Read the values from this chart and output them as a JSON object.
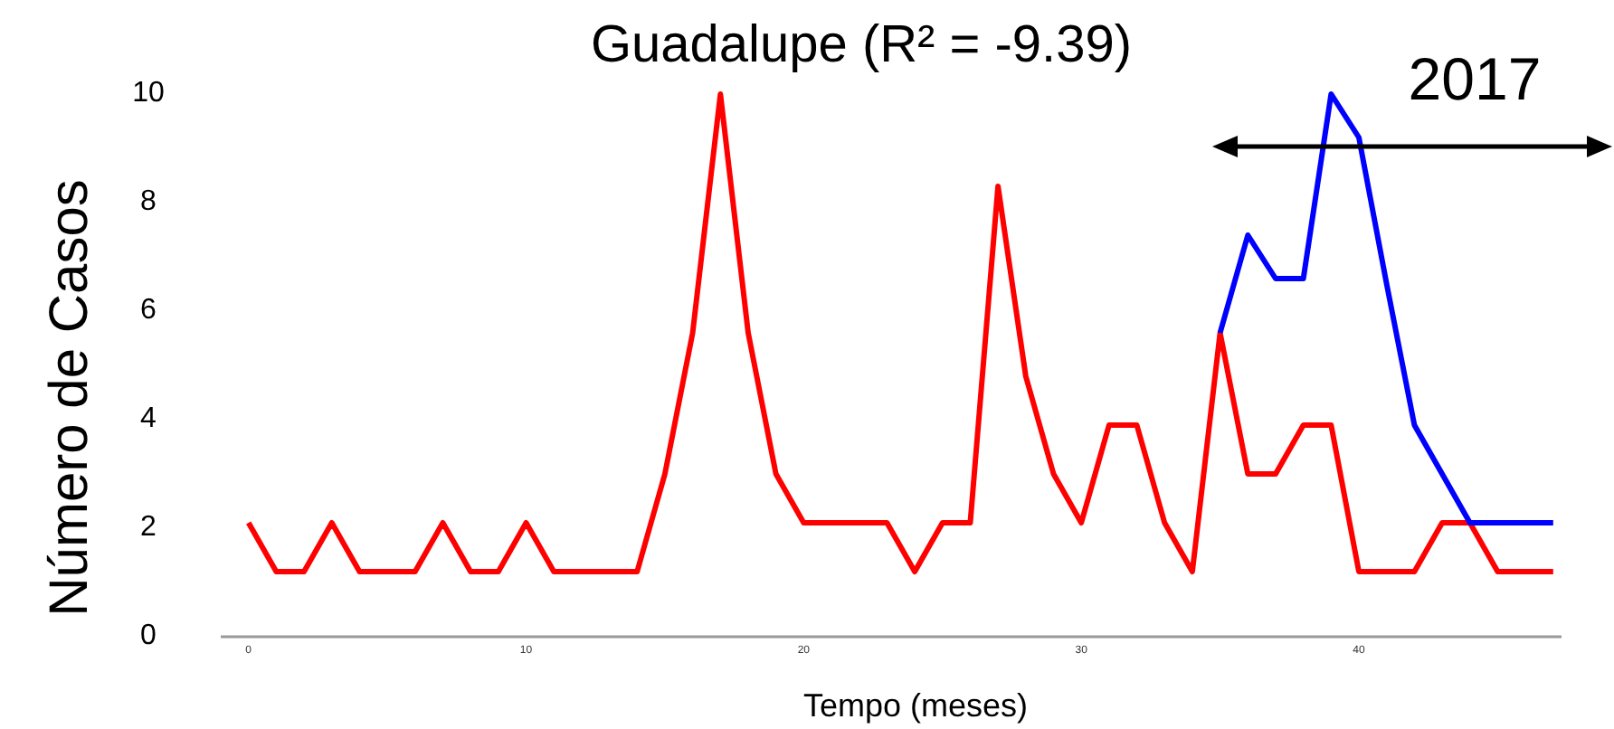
{
  "chart_data": {
    "type": "line",
    "title": "Guadalupe (R² = -9.39)",
    "xlabel": "Tempo (meses)",
    "ylabel": "Número de Casos",
    "annotations": [
      "2017"
    ],
    "x": [
      0,
      1,
      2,
      3,
      4,
      5,
      6,
      7,
      8,
      9,
      10,
      11,
      12,
      13,
      14,
      15,
      16,
      17,
      18,
      19,
      20,
      21,
      22,
      23,
      24,
      25,
      26,
      27,
      28,
      29,
      30,
      31,
      32,
      33,
      34,
      35,
      36,
      37,
      38,
      39,
      40,
      41,
      42,
      43,
      44,
      45,
      46,
      47
    ],
    "series": [
      {
        "color": "#ff0000",
        "values": [
          2.1,
          1.2,
          1.2,
          2.1,
          1.2,
          1.2,
          1.2,
          2.1,
          1.2,
          1.2,
          2.1,
          1.2,
          1.2,
          1.2,
          1.2,
          3,
          5.6,
          10,
          5.6,
          3,
          2.1,
          2.1,
          2.1,
          2.1,
          1.2,
          2.1,
          2.1,
          8.3,
          4.8,
          3,
          2.1,
          3.9,
          3.9,
          2.1,
          1.2,
          5.6,
          3,
          3,
          3.9,
          3.9,
          1.2,
          1.2,
          1.2,
          2.1,
          2.1,
          1.2,
          1.2,
          1.2
        ]
      },
      {
        "color": "#0000ff",
        "x": [
          35,
          36,
          37,
          38,
          39,
          40,
          41,
          42,
          43,
          44,
          45,
          46,
          47
        ],
        "values": [
          5.6,
          7.4,
          6.6,
          6.6,
          10,
          9.2,
          6.5,
          3.9,
          3,
          2.1,
          2.1,
          2.1,
          2.1
        ]
      }
    ],
    "xlim": [
      -1,
      47.3
    ],
    "ylim": [
      0,
      10
    ],
    "xticks": [
      0,
      10,
      20,
      30,
      40
    ],
    "yticks": [
      0,
      2,
      4,
      6,
      8,
      10
    ],
    "grid": false,
    "marker": "none",
    "line_style": "solid"
  }
}
